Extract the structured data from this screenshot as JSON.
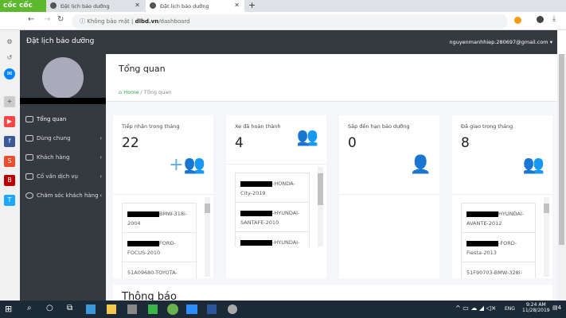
{
  "browser": {
    "brand": "cốc cốc",
    "tabs": [
      {
        "title": "Đặt lịch bảo dưỡng"
      },
      {
        "title": "Đặt lịch bảo dưỡng"
      }
    ],
    "security": "Không bảo mật",
    "url_host": "dlbd.vn",
    "url_path": "/dashboard"
  },
  "app": {
    "title": "Đặt lịch bảo dưỡng",
    "user_email": "nguyenmanhhiep.280697@gmail.com"
  },
  "sidebar": {
    "items": [
      {
        "label": "Tổng quan"
      },
      {
        "label": "Dùng chung"
      },
      {
        "label": "Khách hàng"
      },
      {
        "label": "Cố vấn dịch vụ"
      },
      {
        "label": "Chăm sóc khách hàng"
      }
    ]
  },
  "page": {
    "title": "Tổng quan",
    "breadcrumb": {
      "home": "Home",
      "current": "Tổng quan"
    }
  },
  "cards": [
    {
      "label": "Tiếp nhận trong tháng",
      "value": "22",
      "icon": "user-plus-icon",
      "color": "#5dade2",
      "items": [
        "BMW-318i-2004",
        "FORD-FOCUS-2010",
        "51A09680-TOYOTA-"
      ]
    },
    {
      "label": "Xe đã hoàn thành",
      "value": "4",
      "icon": "users-icon",
      "color": "#3cb96b",
      "items": [
        "-HONDA-City-2019",
        "-HYUNDAI-SANTAFE-2010",
        "-HYUNDAI-"
      ]
    },
    {
      "label": "Sắp đến hạn bảo dưỡng",
      "value": "0",
      "icon": "user-icon",
      "color": "#e03131",
      "items": []
    },
    {
      "label": "Đã giao trong tháng",
      "value": "8",
      "icon": "users-outline-icon",
      "color": "#2f86d6",
      "items": [
        "HYUNDAI-AVANTE-2012",
        "-FORD-Fiesta-2013",
        "51F90703-BMW-328i-"
      ]
    }
  ],
  "notifications": {
    "title": "Thông báo"
  },
  "taskbar": {
    "lang": "ENG",
    "time": "9:24 AM",
    "date": "11/28/2019",
    "notif_count": "4"
  }
}
